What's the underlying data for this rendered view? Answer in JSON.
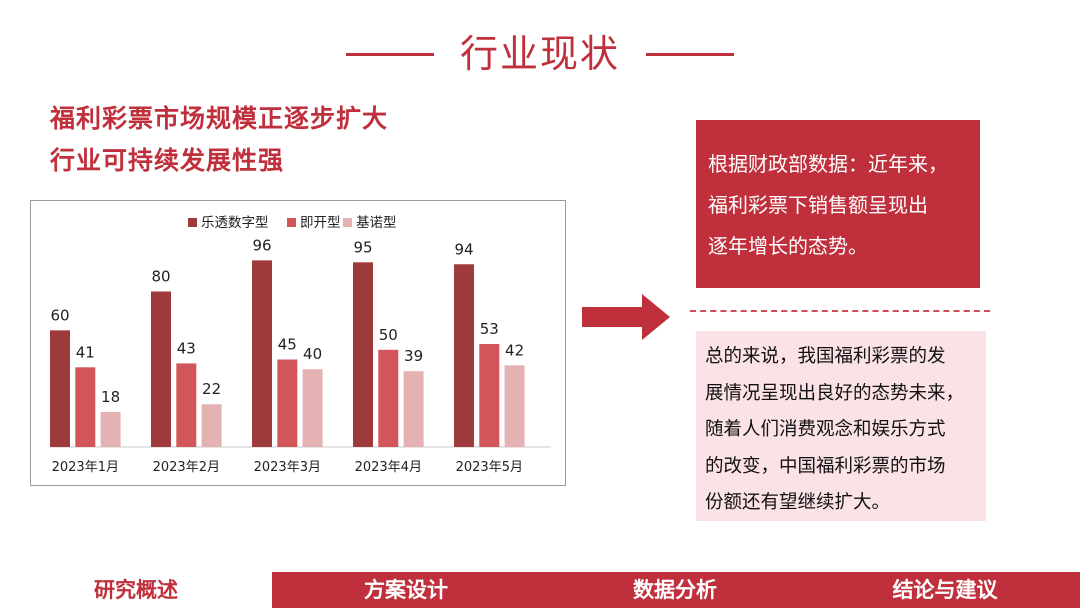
{
  "header": {
    "title": "行业现状"
  },
  "subtitle": {
    "line1": "福利彩票市场规模正逐步扩大",
    "line2": "行业可持续发展性强"
  },
  "chart_data": {
    "type": "bar",
    "categories": [
      "2023年1月",
      "2023年2月",
      "2023年3月",
      "2023年4月",
      "2023年5月"
    ],
    "series": [
      {
        "name": "乐透数字型",
        "values": [
          60,
          80,
          96,
          95,
          94
        ],
        "color": "#9e3a3c"
      },
      {
        "name": "即开型",
        "values": [
          41,
          43,
          45,
          50,
          53
        ],
        "color": "#d25559"
      },
      {
        "name": "基诺型",
        "values": [
          18,
          22,
          40,
          39,
          42
        ],
        "color": "#e5b2b3"
      }
    ],
    "ylim": [
      0,
      110
    ],
    "grid": false,
    "legend": "top"
  },
  "right_panel": {
    "top_lines": [
      "根据财政部数据：近年来，",
      "福利彩票下销售额呈现出",
      "逐年增长的态势。"
    ],
    "bottom_lines": [
      "总的来说，我国福利彩票的发",
      "展情况呈现出良好的态势未来，",
      "随着人们消费观念和娱乐方式",
      "的改变，中国福利彩票的市场",
      "份额还有望继续扩大。"
    ]
  },
  "nav": {
    "items": [
      "研究概述",
      "方案设计",
      "数据分析",
      "结论与建议"
    ]
  },
  "colors": {
    "accent": "#c0303c",
    "panel_light": "#fbe2e6"
  }
}
